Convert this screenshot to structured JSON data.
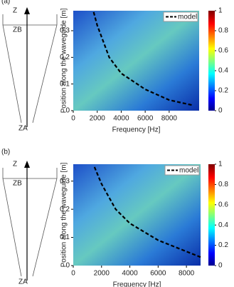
{
  "panel_labels": [
    "(a)",
    "(b)"
  ],
  "diagrams": [
    {
      "axis": "Z",
      "top": "ZB",
      "bottom": "ZA"
    },
    {
      "axis": "Z",
      "top": "ZB",
      "bottom": "ZA"
    }
  ],
  "chart_data": [
    {
      "type": "heatmap",
      "xlabel": "Frequency [Hz]",
      "ylabel": "Position along the waveguide [m]",
      "xlim": [
        0,
        10500
      ],
      "xticks": [
        0,
        2000,
        4000,
        6000,
        8000
      ],
      "ylim": [
        0,
        0.375
      ],
      "yticks": [
        0,
        0.1,
        0.2,
        0.3
      ],
      "colorbar": {
        "lim": [
          0,
          1
        ],
        "ticks": [
          0,
          0.2,
          0.4,
          0.6,
          0.8,
          1
        ]
      },
      "legend": "top-right",
      "series": [
        {
          "name": "model",
          "color": "#000000",
          "x": [
            1700,
            2000,
            3000,
            4000,
            5000,
            6000,
            7000,
            8000,
            9000,
            10000
          ],
          "values": [
            0.37,
            0.32,
            0.2,
            0.14,
            0.11,
            0.08,
            0.06,
            0.04,
            0.03,
            0.02
          ]
        }
      ]
    },
    {
      "type": "heatmap",
      "xlabel": "Frequency [Hz]",
      "ylabel": "Position along the waveguide [m]",
      "xlim": [
        0,
        9000
      ],
      "xticks": [
        0,
        2000,
        4000,
        6000,
        8000
      ],
      "ylim": [
        0,
        0.36
      ],
      "yticks": [
        0,
        0.1,
        0.2,
        0.3
      ],
      "colorbar": {
        "lim": [
          0,
          1
        ],
        "ticks": [
          0,
          0.2,
          0.4,
          0.6,
          0.8,
          1
        ]
      },
      "legend": "top-right",
      "series": [
        {
          "name": "model",
          "color": "#000000",
          "x": [
            1500,
            2000,
            3000,
            4000,
            5000,
            6000,
            7000,
            8000,
            9000
          ],
          "values": [
            0.35,
            0.29,
            0.2,
            0.15,
            0.12,
            0.09,
            0.07,
            0.05,
            0.03
          ]
        }
      ]
    }
  ]
}
